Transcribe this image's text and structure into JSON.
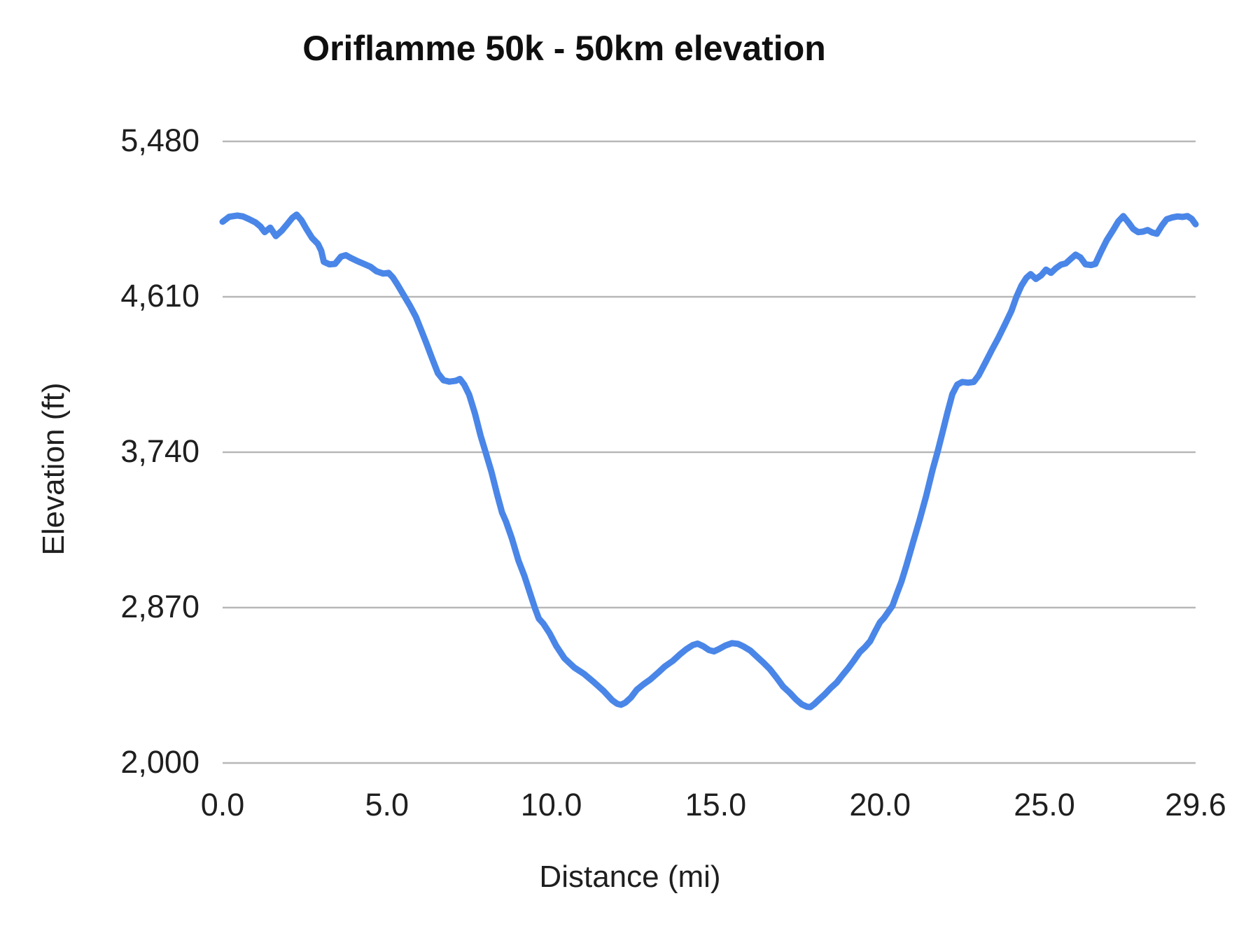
{
  "title": "Oriflamme 50k - 50km elevation",
  "axes": {
    "y_title": "Elevation (ft)",
    "x_title": "Distance (mi)"
  },
  "colors": {
    "line": "#4a86e8",
    "gridline": "#b7b7b7",
    "text": "#1f1f1f"
  },
  "chart_data": {
    "type": "line",
    "title": "Oriflamme 50k - 50km elevation",
    "xlabel": "Distance (mi)",
    "ylabel": "Elevation (ft)",
    "xlim": [
      0,
      29.6
    ],
    "ylim": [
      2000,
      5480
    ],
    "grid": "horizontal",
    "legend": "none",
    "x_ticks": [
      {
        "label": "0.0",
        "value": 0
      },
      {
        "label": "5.0",
        "value": 5
      },
      {
        "label": "10.0",
        "value": 10
      },
      {
        "label": "15.0",
        "value": 15
      },
      {
        "label": "20.0",
        "value": 20
      },
      {
        "label": "25.0",
        "value": 25
      },
      {
        "label": "29.6",
        "value": 29.6
      }
    ],
    "y_ticks": [
      {
        "label": "2,000",
        "value": 2000
      },
      {
        "label": "2,870",
        "value": 2870
      },
      {
        "label": "3,740",
        "value": 3740
      },
      {
        "label": "4,610",
        "value": 4610
      },
      {
        "label": "5,480",
        "value": 5480
      }
    ],
    "series": [
      {
        "name": "elevation",
        "color": "#4a86e8",
        "points": [
          [
            0.0,
            5030
          ],
          [
            0.2,
            5058
          ],
          [
            0.45,
            5065
          ],
          [
            0.62,
            5060
          ],
          [
            0.8,
            5045
          ],
          [
            1.0,
            5026
          ],
          [
            1.15,
            5004
          ],
          [
            1.28,
            4972
          ],
          [
            1.45,
            4997
          ],
          [
            1.62,
            4950
          ],
          [
            1.8,
            4980
          ],
          [
            1.98,
            5020
          ],
          [
            2.12,
            5052
          ],
          [
            2.25,
            5070
          ],
          [
            2.4,
            5038
          ],
          [
            2.55,
            4990
          ],
          [
            2.72,
            4940
          ],
          [
            2.9,
            4906
          ],
          [
            3.0,
            4868
          ],
          [
            3.08,
            4806
          ],
          [
            3.25,
            4792
          ],
          [
            3.42,
            4794
          ],
          [
            3.6,
            4835
          ],
          [
            3.75,
            4843
          ],
          [
            3.9,
            4828
          ],
          [
            4.1,
            4810
          ],
          [
            4.3,
            4794
          ],
          [
            4.5,
            4778
          ],
          [
            4.68,
            4753
          ],
          [
            4.88,
            4740
          ],
          [
            5.05,
            4744
          ],
          [
            5.18,
            4718
          ],
          [
            5.32,
            4678
          ],
          [
            5.5,
            4622
          ],
          [
            5.7,
            4560
          ],
          [
            5.88,
            4498
          ],
          [
            6.05,
            4420
          ],
          [
            6.2,
            4350
          ],
          [
            6.38,
            4262
          ],
          [
            6.55,
            4182
          ],
          [
            6.72,
            4143
          ],
          [
            6.9,
            4135
          ],
          [
            7.1,
            4140
          ],
          [
            7.22,
            4150
          ],
          [
            7.35,
            4118
          ],
          [
            7.5,
            4062
          ],
          [
            7.68,
            3955
          ],
          [
            7.85,
            3832
          ],
          [
            8.0,
            3740
          ],
          [
            8.18,
            3630
          ],
          [
            8.35,
            3505
          ],
          [
            8.5,
            3402
          ],
          [
            8.62,
            3352
          ],
          [
            8.8,
            3258
          ],
          [
            9.0,
            3134
          ],
          [
            9.18,
            3048
          ],
          [
            9.35,
            2952
          ],
          [
            9.5,
            2868
          ],
          [
            9.62,
            2808
          ],
          [
            9.76,
            2780
          ],
          [
            9.95,
            2726
          ],
          [
            10.15,
            2656
          ],
          [
            10.4,
            2586
          ],
          [
            10.7,
            2534
          ],
          [
            11.0,
            2498
          ],
          [
            11.3,
            2452
          ],
          [
            11.6,
            2402
          ],
          [
            11.85,
            2352
          ],
          [
            12.0,
            2332
          ],
          [
            12.12,
            2326
          ],
          [
            12.25,
            2338
          ],
          [
            12.42,
            2366
          ],
          [
            12.6,
            2410
          ],
          [
            12.8,
            2440
          ],
          [
            13.0,
            2466
          ],
          [
            13.25,
            2506
          ],
          [
            13.45,
            2540
          ],
          [
            13.7,
            2572
          ],
          [
            13.9,
            2606
          ],
          [
            14.1,
            2636
          ],
          [
            14.3,
            2660
          ],
          [
            14.45,
            2668
          ],
          [
            14.62,
            2654
          ],
          [
            14.8,
            2632
          ],
          [
            14.95,
            2625
          ],
          [
            15.1,
            2638
          ],
          [
            15.3,
            2658
          ],
          [
            15.5,
            2671
          ],
          [
            15.68,
            2667
          ],
          [
            15.85,
            2652
          ],
          [
            16.05,
            2630
          ],
          [
            16.25,
            2596
          ],
          [
            16.45,
            2562
          ],
          [
            16.65,
            2525
          ],
          [
            16.85,
            2478
          ],
          [
            17.05,
            2428
          ],
          [
            17.25,
            2394
          ],
          [
            17.45,
            2355
          ],
          [
            17.62,
            2328
          ],
          [
            17.78,
            2315
          ],
          [
            17.88,
            2313
          ],
          [
            18.0,
            2330
          ],
          [
            18.15,
            2356
          ],
          [
            18.32,
            2385
          ],
          [
            18.5,
            2420
          ],
          [
            18.68,
            2450
          ],
          [
            18.85,
            2490
          ],
          [
            19.02,
            2528
          ],
          [
            19.2,
            2572
          ],
          [
            19.38,
            2620
          ],
          [
            19.55,
            2650
          ],
          [
            19.7,
            2682
          ],
          [
            19.85,
            2736
          ],
          [
            20.0,
            2788
          ],
          [
            20.12,
            2812
          ],
          [
            20.25,
            2846
          ],
          [
            20.38,
            2880
          ],
          [
            20.52,
            2952
          ],
          [
            20.65,
            3015
          ],
          [
            20.8,
            3105
          ],
          [
            21.0,
            3232
          ],
          [
            21.2,
            3358
          ],
          [
            21.4,
            3492
          ],
          [
            21.6,
            3642
          ],
          [
            21.75,
            3742
          ],
          [
            21.9,
            3850
          ],
          [
            22.05,
            3962
          ],
          [
            22.2,
            4065
          ],
          [
            22.35,
            4118
          ],
          [
            22.5,
            4133
          ],
          [
            22.68,
            4129
          ],
          [
            22.85,
            4133
          ],
          [
            23.0,
            4170
          ],
          [
            23.2,
            4240
          ],
          [
            23.4,
            4312
          ],
          [
            23.6,
            4380
          ],
          [
            23.8,
            4455
          ],
          [
            24.0,
            4532
          ],
          [
            24.15,
            4610
          ],
          [
            24.3,
            4672
          ],
          [
            24.45,
            4716
          ],
          [
            24.58,
            4737
          ],
          [
            24.74,
            4710
          ],
          [
            24.9,
            4730
          ],
          [
            25.05,
            4762
          ],
          [
            25.2,
            4744
          ],
          [
            25.35,
            4770
          ],
          [
            25.5,
            4790
          ],
          [
            25.65,
            4797
          ],
          [
            25.8,
            4822
          ],
          [
            25.95,
            4846
          ],
          [
            26.1,
            4830
          ],
          [
            26.25,
            4792
          ],
          [
            26.42,
            4788
          ],
          [
            26.55,
            4794
          ],
          [
            26.72,
            4862
          ],
          [
            26.9,
            4928
          ],
          [
            27.1,
            4986
          ],
          [
            27.25,
            5032
          ],
          [
            27.4,
            5062
          ],
          [
            27.55,
            5028
          ],
          [
            27.7,
            4990
          ],
          [
            27.85,
            4972
          ],
          [
            28.0,
            4975
          ],
          [
            28.14,
            4984
          ],
          [
            28.28,
            4970
          ],
          [
            28.42,
            4963
          ],
          [
            28.58,
            5010
          ],
          [
            28.72,
            5044
          ],
          [
            28.88,
            5054
          ],
          [
            29.05,
            5060
          ],
          [
            29.2,
            5057
          ],
          [
            29.35,
            5062
          ],
          [
            29.48,
            5046
          ],
          [
            29.6,
            5016
          ]
        ]
      }
    ]
  }
}
